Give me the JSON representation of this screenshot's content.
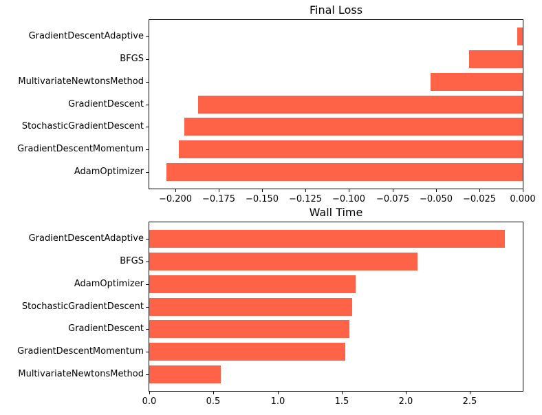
{
  "figure": {
    "background": "#ffffff",
    "bar_color": "#ff6347",
    "axis_color": "#000000"
  },
  "chart_data": [
    {
      "type": "bar",
      "orientation": "horizontal",
      "title": "Final Loss",
      "bar_color": "#ff6347",
      "categories": [
        "GradientDescentAdaptive",
        "BFGS",
        "MultivariateNewtonsMethod",
        "GradientDescent",
        "StochasticGradientDescent",
        "GradientDescentMomentum",
        "AdamOptimizer"
      ],
      "values": [
        -0.003,
        -0.031,
        -0.053,
        -0.187,
        -0.195,
        -0.198,
        -0.205
      ],
      "xlim": [
        -0.215,
        0
      ],
      "xticks": [
        -0.2,
        -0.175,
        -0.15,
        -0.125,
        -0.1,
        -0.075,
        -0.05,
        -0.025,
        0.0
      ],
      "xtick_labels": [
        "−0.200",
        "−0.175",
        "−0.150",
        "−0.125",
        "−0.100",
        "−0.075",
        "−0.050",
        "−0.025",
        "0.000"
      ],
      "grid": false,
      "legend": false
    },
    {
      "type": "bar",
      "orientation": "horizontal",
      "title": "Wall Time",
      "bar_color": "#ff6347",
      "categories": [
        "GradientDescentAdaptive",
        "BFGS",
        "AdamOptimizer",
        "StochasticGradientDescent",
        "GradientDescent",
        "GradientDescentMomentum",
        "MultivariateNewtonsMethod"
      ],
      "values": [
        2.77,
        2.09,
        1.61,
        1.58,
        1.56,
        1.53,
        0.56
      ],
      "xlim": [
        0,
        2.91
      ],
      "xticks": [
        0.0,
        0.5,
        1.0,
        1.5,
        2.0,
        2.5
      ],
      "xtick_labels": [
        "0.0",
        "0.5",
        "1.0",
        "1.5",
        "2.0",
        "2.5"
      ],
      "grid": false,
      "legend": false
    }
  ]
}
